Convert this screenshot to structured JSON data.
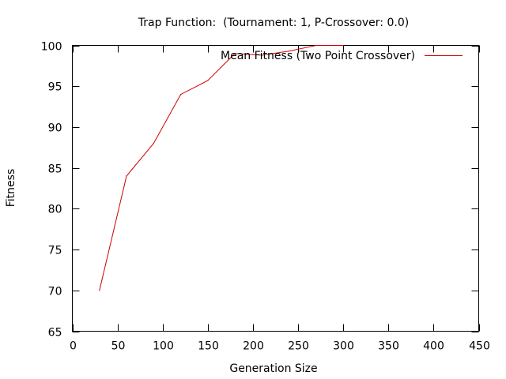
{
  "chart_data": {
    "type": "line",
    "title": "Trap Function:  (Tournament: 1, P-Crossover: 0.0)",
    "xlabel": "Generation Size",
    "ylabel": "Fitness",
    "xlim": [
      0,
      450
    ],
    "ylim": [
      65,
      100
    ],
    "xticks": [
      0,
      50,
      100,
      150,
      200,
      250,
      300,
      350,
      400,
      450
    ],
    "yticks": [
      65,
      70,
      75,
      80,
      85,
      90,
      95,
      100
    ],
    "grid": false,
    "legend_position": "top-right",
    "series": [
      {
        "name": "Mean Fitness (Two Point Crossover)",
        "color": "#cc0000",
        "x": [
          30,
          60,
          90,
          120,
          150,
          180,
          210,
          240,
          270,
          300
        ],
        "y": [
          70,
          84,
          88,
          94,
          95.7,
          99,
          98.8,
          99.3,
          100,
          100
        ]
      }
    ]
  }
}
